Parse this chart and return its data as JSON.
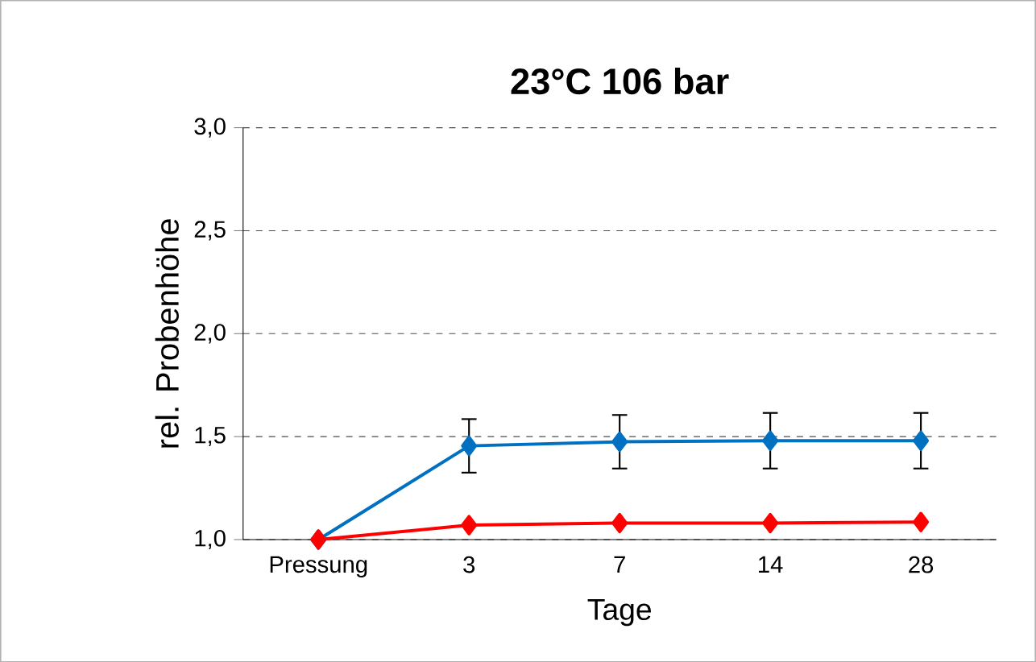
{
  "chart_data": {
    "type": "line",
    "title": "23°C 106 bar",
    "xlabel": "Tage",
    "ylabel": "rel. Probenhöhe",
    "categories": [
      "Pressung",
      "3",
      "7",
      "14",
      "28"
    ],
    "series": [
      {
        "color": "#0070c0",
        "values": [
          1.0,
          1.455,
          1.475,
          1.48,
          1.48
        ],
        "errors": [
          null,
          0.13,
          0.13,
          0.135,
          0.135
        ]
      },
      {
        "color": "#ff0000",
        "values": [
          1.0,
          1.07,
          1.08,
          1.08,
          1.085
        ]
      }
    ],
    "ylim": [
      1.0,
      3.0
    ],
    "yticks": [
      {
        "value": 1.0,
        "label": "1,0"
      },
      {
        "value": 1.5,
        "label": "1,5"
      },
      {
        "value": 2.0,
        "label": "2,0"
      },
      {
        "value": 2.5,
        "label": "2,5"
      },
      {
        "value": 3.0,
        "label": "3,0"
      }
    ],
    "grid": "y",
    "marker": "diamond",
    "line_style": "solid"
  }
}
